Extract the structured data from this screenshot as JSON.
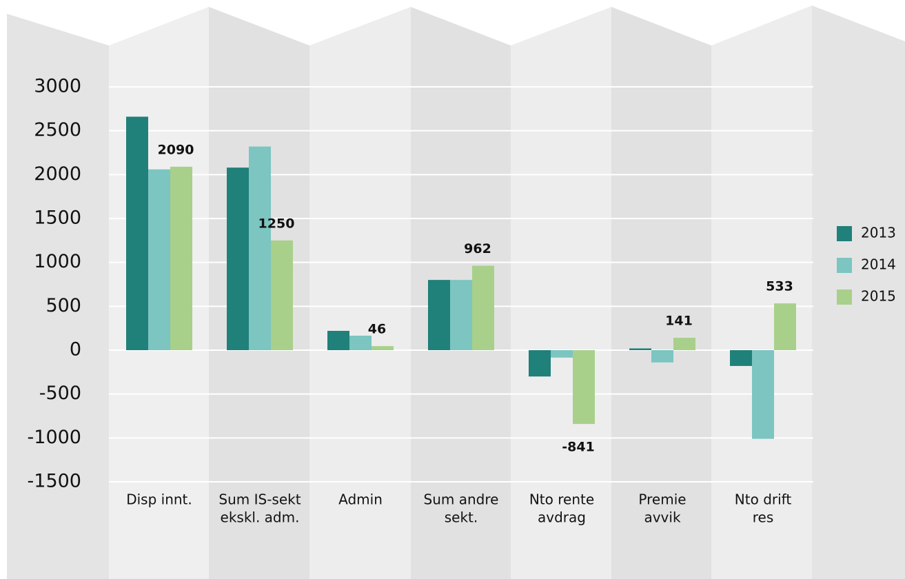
{
  "chart_data": {
    "type": "bar",
    "categories": [
      [
        "Disp innt."
      ],
      [
        "Sum IS-sekt",
        "ekskl. adm."
      ],
      [
        "Admin"
      ],
      [
        "Sum andre",
        "sekt."
      ],
      [
        "Nto rente",
        "avdrag"
      ],
      [
        "Premie",
        "avvik"
      ],
      [
        "Nto drift",
        "res"
      ]
    ],
    "series": [
      {
        "name": "2013",
        "color": "#20807a",
        "values": [
          2660,
          2080,
          220,
          800,
          -300,
          20,
          -180
        ]
      },
      {
        "name": "2014",
        "color": "#7cc5c1",
        "values": [
          2060,
          2320,
          165,
          800,
          -85,
          -140,
          -1010
        ]
      },
      {
        "name": "2015",
        "color": "#a8d08a",
        "values": [
          2090,
          1250,
          46,
          962,
          -841,
          141,
          533
        ],
        "labels": true
      }
    ],
    "ylim": [
      -1500,
      3000
    ],
    "yticks": [
      -1500,
      -1000,
      -500,
      0,
      500,
      1000,
      1500,
      2000,
      2500,
      3000
    ],
    "grid": true,
    "legend": "right"
  }
}
